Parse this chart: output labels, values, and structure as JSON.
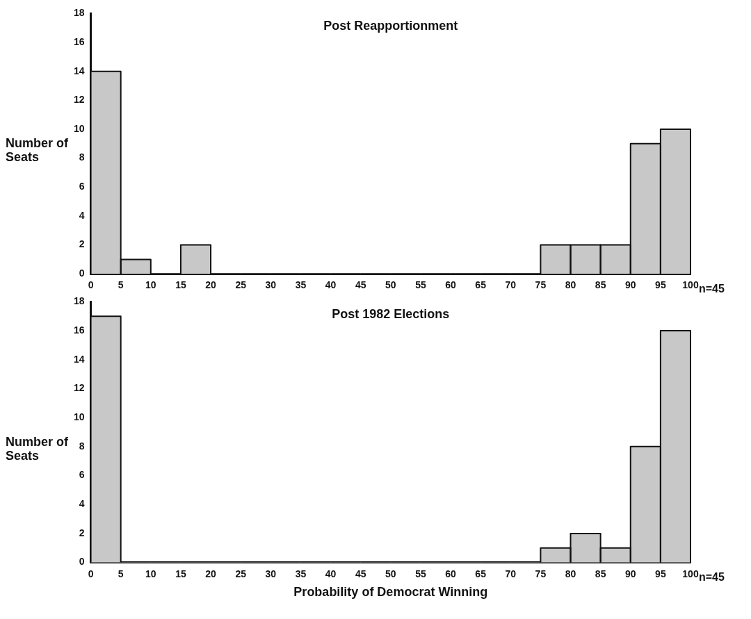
{
  "chart_data": [
    {
      "type": "histogram",
      "title": "Post Reapportionment",
      "ylabel": "Number of Seats",
      "annotations": [
        "n=45"
      ],
      "color": "#c8c8c8",
      "bins": [
        0,
        5,
        10,
        15,
        20,
        25,
        30,
        35,
        40,
        45,
        50,
        55,
        60,
        65,
        70,
        75,
        80,
        85,
        90,
        95,
        100
      ],
      "values": [
        14,
        1,
        0,
        2,
        0,
        0,
        0,
        0,
        0,
        0,
        0,
        0,
        0,
        0,
        0,
        2,
        2,
        2,
        9,
        10
      ],
      "xlim": [
        0,
        100
      ],
      "xticks": [
        0,
        5,
        10,
        15,
        20,
        25,
        30,
        35,
        40,
        45,
        50,
        55,
        60,
        65,
        70,
        75,
        80,
        85,
        90,
        95,
        100
      ],
      "ylim": [
        0,
        18
      ],
      "yticks": [
        0,
        2,
        4,
        6,
        8,
        10,
        12,
        14,
        16,
        18
      ]
    },
    {
      "type": "histogram",
      "title": "Post 1982 Elections",
      "ylabel": "Number of Seats",
      "xlabel": "Probability of Democrat Winning",
      "annotations": [
        "n=45"
      ],
      "color": "#c8c8c8",
      "bins": [
        0,
        5,
        10,
        15,
        20,
        25,
        30,
        35,
        40,
        45,
        50,
        55,
        60,
        65,
        70,
        75,
        80,
        85,
        90,
        95,
        100
      ],
      "values": [
        17,
        0,
        0,
        0,
        0,
        0,
        0,
        0,
        0,
        0,
        0,
        0,
        0,
        0,
        0,
        1,
        2,
        1,
        8,
        16
      ],
      "xlim": [
        0,
        100
      ],
      "xticks": [
        0,
        5,
        10,
        15,
        20,
        25,
        30,
        35,
        40,
        45,
        50,
        55,
        60,
        65,
        70,
        75,
        80,
        85,
        90,
        95,
        100
      ],
      "ylim": [
        0,
        18
      ],
      "yticks": [
        0,
        2,
        4,
        6,
        8,
        10,
        12,
        14,
        16,
        18
      ]
    }
  ]
}
